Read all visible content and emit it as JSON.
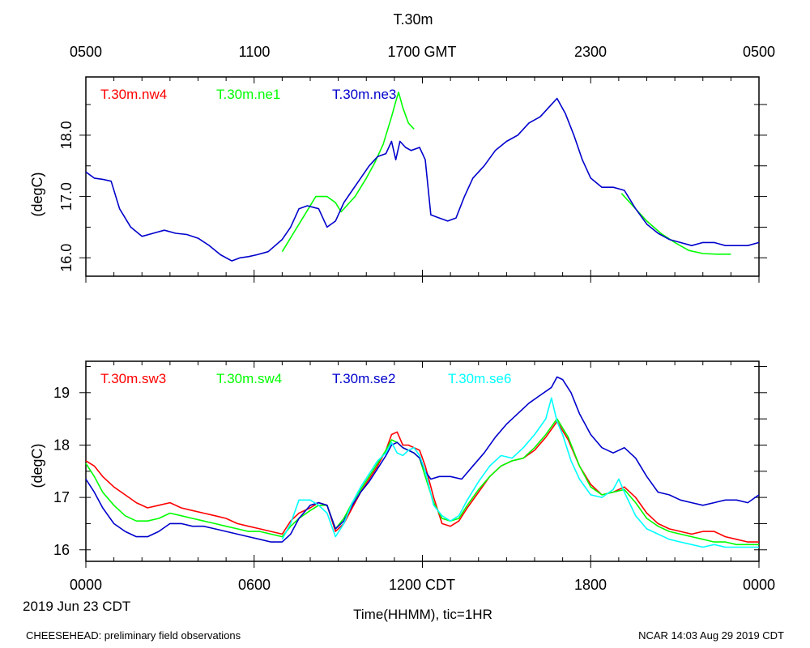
{
  "title": "T.30m",
  "top_axis": {
    "ticks": [
      "0500",
      "1100",
      "1700 GMT",
      "2300",
      "0500"
    ]
  },
  "bottom_axis": {
    "ticks": [
      "0000",
      "0600",
      "1200 CDT",
      "1800",
      "0000"
    ]
  },
  "date_label": "2019 Jun 23 CDT",
  "xlabel": "Time(HHMM), tic=1HR",
  "footer_left": "CHEESEHEAD: preliminary field observations",
  "footer_right": "NCAR 14:03 Aug 29 2019 CDT",
  "colors": {
    "red": "#ff0000",
    "green": "#00ff00",
    "blue": "#0000cc",
    "cyan": "#00ffff"
  },
  "chart_data": [
    {
      "type": "line",
      "ylabel": "(degC)",
      "xlim": [
        0,
        24
      ],
      "ylim": [
        15.7,
        18.95
      ],
      "yticks": [
        16.0,
        17.0,
        18.0
      ],
      "ytick_labels": [
        "16.0",
        "17.0",
        "18.0"
      ],
      "series": [
        {
          "name": "T.30m.nw4",
          "color": "#ff0000",
          "x": [],
          "y": []
        },
        {
          "name": "T.30m.ne1",
          "color": "#00ff00",
          "x": [
            7.0,
            7.4,
            7.8,
            8.2,
            8.6,
            8.9,
            9.1,
            9.3,
            9.6,
            10.0,
            10.3,
            10.6,
            10.9,
            11.05,
            11.15,
            11.3,
            11.5,
            11.7
          ],
          "y": [
            16.1,
            16.4,
            16.7,
            17.0,
            17.0,
            16.9,
            16.75,
            16.85,
            17.0,
            17.3,
            17.55,
            17.85,
            18.3,
            18.55,
            18.7,
            18.45,
            18.2,
            18.1
          ]
        },
        {
          "name": "T.30m.ne1",
          "color": "#00ff00",
          "x": [
            19.1,
            19.5,
            20.0,
            20.5,
            21.0,
            21.5,
            22.0,
            22.5,
            23.0
          ],
          "y": [
            17.05,
            16.85,
            16.6,
            16.4,
            16.25,
            16.12,
            16.07,
            16.06,
            16.06
          ]
        },
        {
          "name": "T.30m.ne3",
          "color": "#0000cc",
          "x": [
            0,
            0.3,
            0.6,
            0.9,
            1.2,
            1.6,
            2.0,
            2.4,
            2.8,
            3.2,
            3.6,
            4.0,
            4.4,
            4.8,
            5.2,
            5.5,
            5.8,
            6.1,
            6.5,
            7.0,
            7.3,
            7.6,
            7.9,
            8.3,
            8.6,
            8.9,
            9.2,
            9.5,
            9.8,
            10.1,
            10.4,
            10.7,
            10.9,
            11.05,
            11.2,
            11.4,
            11.6,
            11.9,
            12.1,
            12.3,
            12.6,
            12.9,
            13.2,
            13.5,
            13.8,
            14.2,
            14.6,
            15.0,
            15.4,
            15.8,
            16.2,
            16.5,
            16.8,
            17.1,
            17.4,
            17.7,
            18.0,
            18.4,
            18.8,
            19.2,
            19.6,
            20.0,
            20.4,
            20.8,
            21.2,
            21.6,
            22.0,
            22.4,
            22.8,
            23.2,
            23.6,
            24.0
          ],
          "y": [
            17.4,
            17.3,
            17.28,
            17.25,
            16.8,
            16.5,
            16.35,
            16.4,
            16.45,
            16.4,
            16.38,
            16.32,
            16.2,
            16.05,
            15.95,
            16.0,
            16.02,
            16.05,
            16.1,
            16.3,
            16.5,
            16.8,
            16.85,
            16.8,
            16.5,
            16.6,
            16.9,
            17.1,
            17.3,
            17.5,
            17.65,
            17.7,
            17.9,
            17.6,
            17.9,
            17.8,
            17.75,
            17.8,
            17.6,
            16.7,
            16.65,
            16.6,
            16.65,
            17.0,
            17.3,
            17.5,
            17.75,
            17.9,
            18.0,
            18.2,
            18.3,
            18.45,
            18.6,
            18.35,
            18.0,
            17.6,
            17.3,
            17.15,
            17.15,
            17.1,
            16.8,
            16.55,
            16.4,
            16.3,
            16.25,
            16.2,
            16.25,
            16.25,
            16.2,
            16.2,
            16.2,
            16.25
          ]
        }
      ]
    },
    {
      "type": "line",
      "ylabel": "(degC)",
      "xlim": [
        0,
        24
      ],
      "ylim": [
        15.78,
        19.6
      ],
      "yticks": [
        16,
        17,
        18,
        19
      ],
      "ytick_labels": [
        "16",
        "17",
        "18",
        "19"
      ],
      "series": [
        {
          "name": "T.30m.sw3",
          "color": "#ff0000",
          "x": [
            0,
            0.3,
            0.6,
            1.0,
            1.4,
            1.8,
            2.2,
            2.6,
            3.0,
            3.4,
            3.8,
            4.2,
            4.6,
            5.0,
            5.4,
            5.8,
            6.2,
            6.6,
            7.0,
            7.3,
            7.6,
            8.0,
            8.3,
            8.6,
            8.9,
            9.2,
            9.5,
            9.8,
            10.1,
            10.4,
            10.7,
            10.9,
            11.1,
            11.3,
            11.5,
            11.7,
            11.9,
            12.1,
            12.4,
            12.7,
            13.0,
            13.3,
            13.6,
            14.0,
            14.4,
            14.8,
            15.2,
            15.6,
            16.0,
            16.4,
            16.8,
            17.2,
            17.6,
            18.0,
            18.4,
            18.8,
            19.2,
            19.6,
            20.0,
            20.4,
            20.8,
            21.2,
            21.6,
            22.0,
            22.4,
            22.8,
            23.2,
            23.6,
            24.0
          ],
          "y": [
            17.7,
            17.6,
            17.4,
            17.2,
            17.05,
            16.9,
            16.8,
            16.85,
            16.9,
            16.8,
            16.75,
            16.7,
            16.65,
            16.6,
            16.5,
            16.45,
            16.4,
            16.35,
            16.3,
            16.55,
            16.7,
            16.8,
            16.9,
            16.85,
            16.35,
            16.5,
            16.8,
            17.1,
            17.35,
            17.6,
            17.9,
            18.2,
            18.25,
            18.0,
            18.0,
            17.95,
            17.9,
            17.6,
            17.0,
            16.5,
            16.45,
            16.55,
            16.8,
            17.1,
            17.4,
            17.6,
            17.7,
            17.75,
            17.9,
            18.15,
            18.45,
            18.1,
            17.6,
            17.25,
            17.05,
            17.1,
            17.2,
            17.0,
            16.7,
            16.5,
            16.4,
            16.35,
            16.3,
            16.35,
            16.35,
            16.25,
            16.2,
            16.15,
            16.15
          ]
        },
        {
          "name": "T.30m.sw4",
          "color": "#00ff00",
          "x": [
            0,
            0.3,
            0.6,
            1.0,
            1.4,
            1.8,
            2.2,
            2.6,
            3.0,
            3.4,
            3.8,
            4.2,
            4.6,
            5.0,
            5.4,
            5.8,
            6.2,
            6.6,
            7.0,
            7.3,
            7.6,
            8.0,
            8.3,
            8.6,
            8.9,
            9.2,
            9.5,
            9.8,
            10.1,
            10.4,
            10.7,
            10.9,
            11.1,
            11.3,
            11.5,
            11.7,
            11.9,
            12.1,
            12.4,
            12.7,
            13.0,
            13.3,
            13.6,
            14.0,
            14.4,
            14.8,
            15.2,
            15.6,
            16.0,
            16.4,
            16.8,
            17.2,
            17.6,
            18.0,
            18.4,
            18.8,
            19.2,
            19.6,
            20.0,
            20.4,
            20.8,
            21.2,
            21.6,
            22.0,
            22.4,
            22.8,
            23.2,
            23.6,
            24.0
          ],
          "y": [
            17.65,
            17.4,
            17.1,
            16.85,
            16.65,
            16.55,
            16.55,
            16.6,
            16.7,
            16.65,
            16.6,
            16.55,
            16.5,
            16.45,
            16.4,
            16.35,
            16.35,
            16.3,
            16.25,
            16.45,
            16.6,
            16.75,
            16.85,
            16.85,
            16.4,
            16.6,
            16.9,
            17.15,
            17.4,
            17.65,
            17.9,
            18.1,
            18.05,
            17.95,
            17.9,
            17.85,
            17.75,
            17.4,
            16.9,
            16.6,
            16.55,
            16.6,
            16.85,
            17.15,
            17.4,
            17.6,
            17.7,
            17.75,
            17.95,
            18.2,
            18.5,
            18.15,
            17.6,
            17.2,
            17.05,
            17.1,
            17.15,
            16.9,
            16.6,
            16.45,
            16.35,
            16.3,
            16.25,
            16.2,
            16.15,
            16.15,
            16.1,
            16.1,
            16.1
          ]
        },
        {
          "name": "T.30m.se2",
          "color": "#0000cc",
          "x": [
            0,
            0.3,
            0.6,
            1.0,
            1.4,
            1.8,
            2.2,
            2.6,
            3.0,
            3.4,
            3.8,
            4.2,
            4.6,
            5.0,
            5.4,
            5.8,
            6.2,
            6.6,
            7.0,
            7.3,
            7.6,
            8.0,
            8.3,
            8.6,
            8.9,
            9.2,
            9.5,
            9.8,
            10.1,
            10.4,
            10.7,
            10.9,
            11.1,
            11.3,
            11.5,
            11.7,
            11.9,
            12.1,
            12.3,
            12.6,
            13.0,
            13.4,
            13.8,
            14.2,
            14.6,
            15.0,
            15.4,
            15.8,
            16.2,
            16.6,
            16.8,
            17.0,
            17.3,
            17.6,
            18.0,
            18.4,
            18.8,
            19.2,
            19.6,
            20.0,
            20.4,
            20.8,
            21.2,
            21.6,
            22.0,
            22.4,
            22.8,
            23.2,
            23.6,
            24.0
          ],
          "y": [
            17.35,
            17.1,
            16.8,
            16.5,
            16.35,
            16.25,
            16.25,
            16.35,
            16.5,
            16.5,
            16.45,
            16.45,
            16.4,
            16.35,
            16.3,
            16.25,
            16.2,
            16.15,
            16.15,
            16.3,
            16.6,
            16.85,
            16.9,
            16.85,
            16.4,
            16.55,
            16.85,
            17.1,
            17.3,
            17.55,
            17.8,
            18.0,
            18.05,
            17.95,
            17.9,
            17.85,
            17.75,
            17.5,
            17.35,
            17.4,
            17.4,
            17.35,
            17.6,
            17.85,
            18.15,
            18.4,
            18.6,
            18.8,
            18.95,
            19.1,
            19.3,
            19.25,
            19.0,
            18.6,
            18.2,
            17.95,
            17.85,
            17.95,
            17.75,
            17.4,
            17.1,
            17.05,
            16.95,
            16.9,
            16.85,
            16.9,
            16.95,
            16.95,
            16.9,
            17.05
          ]
        },
        {
          "name": "T.30m.se6",
          "color": "#00ffff",
          "x": [
            7.0,
            7.3,
            7.6,
            8.0,
            8.3,
            8.6,
            8.9,
            9.2,
            9.5,
            9.8,
            10.1,
            10.4,
            10.7,
            10.9,
            11.1,
            11.3,
            11.5,
            11.7,
            11.9,
            12.1,
            12.4,
            12.7,
            13.0,
            13.3,
            13.6,
            14.0,
            14.4,
            14.8,
            15.2,
            15.6,
            16.0,
            16.4,
            16.6,
            16.8,
            17.0,
            17.3,
            17.6,
            18.0,
            18.4,
            18.8,
            19.0,
            19.2,
            19.6,
            20.0,
            20.4,
            20.8,
            21.2,
            21.6,
            22.0,
            22.4,
            22.8,
            23.2,
            23.6,
            24.0
          ],
          "y": [
            16.2,
            16.5,
            16.95,
            16.95,
            16.85,
            16.7,
            16.25,
            16.5,
            16.9,
            17.2,
            17.45,
            17.7,
            17.85,
            18.05,
            17.85,
            17.8,
            17.9,
            17.95,
            17.8,
            17.5,
            16.85,
            16.65,
            16.55,
            16.65,
            16.95,
            17.3,
            17.6,
            17.8,
            17.75,
            17.95,
            18.2,
            18.5,
            18.9,
            18.45,
            18.2,
            17.7,
            17.35,
            17.05,
            17.0,
            17.15,
            17.35,
            17.1,
            16.65,
            16.4,
            16.3,
            16.2,
            16.15,
            16.1,
            16.05,
            16.1,
            16.05,
            16.05,
            16.05,
            16.05
          ]
        }
      ]
    }
  ]
}
